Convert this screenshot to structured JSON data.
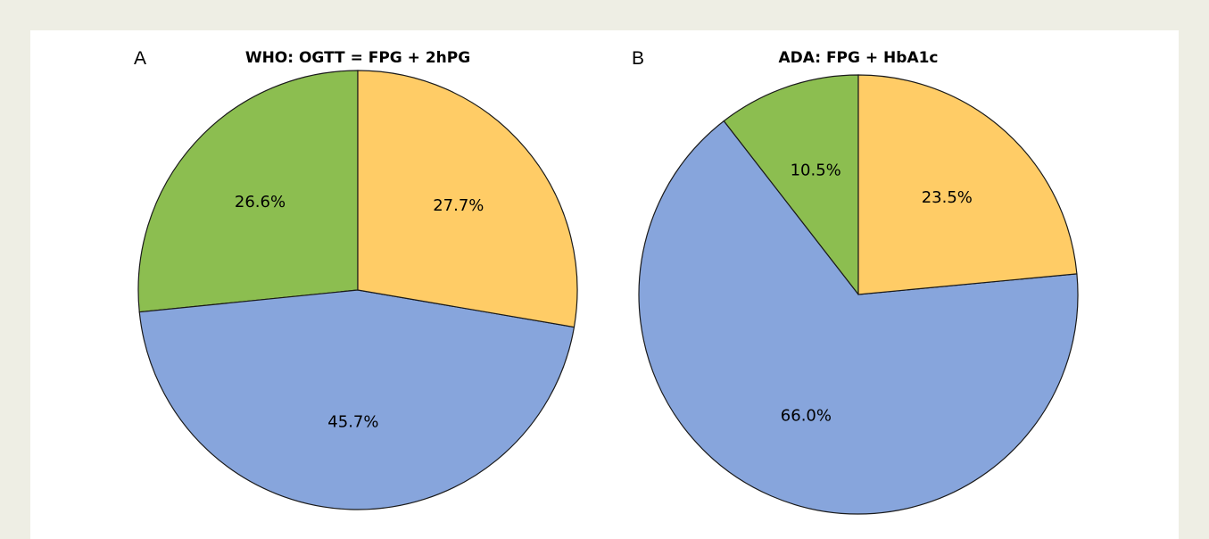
{
  "chart_data": [
    {
      "type": "pie",
      "panel": "A",
      "title": "WHO: OGTT = FPG + 2hPG",
      "slices": [
        {
          "value": 27.7,
          "label": "27.7%",
          "color": "#ffcc66"
        },
        {
          "value": 45.7,
          "label": "45.7%",
          "color": "#87a5dc"
        },
        {
          "value": 26.6,
          "label": "26.6%",
          "color": "#8cbe50"
        }
      ]
    },
    {
      "type": "pie",
      "panel": "B",
      "title": "ADA: FPG + HbA1c",
      "slices": [
        {
          "value": 23.5,
          "label": "23.5%",
          "color": "#ffcc66"
        },
        {
          "value": 66.0,
          "label": "66.0%",
          "color": "#87a5dc"
        },
        {
          "value": 10.5,
          "label": "10.5%",
          "color": "#8cbe50"
        }
      ]
    }
  ]
}
